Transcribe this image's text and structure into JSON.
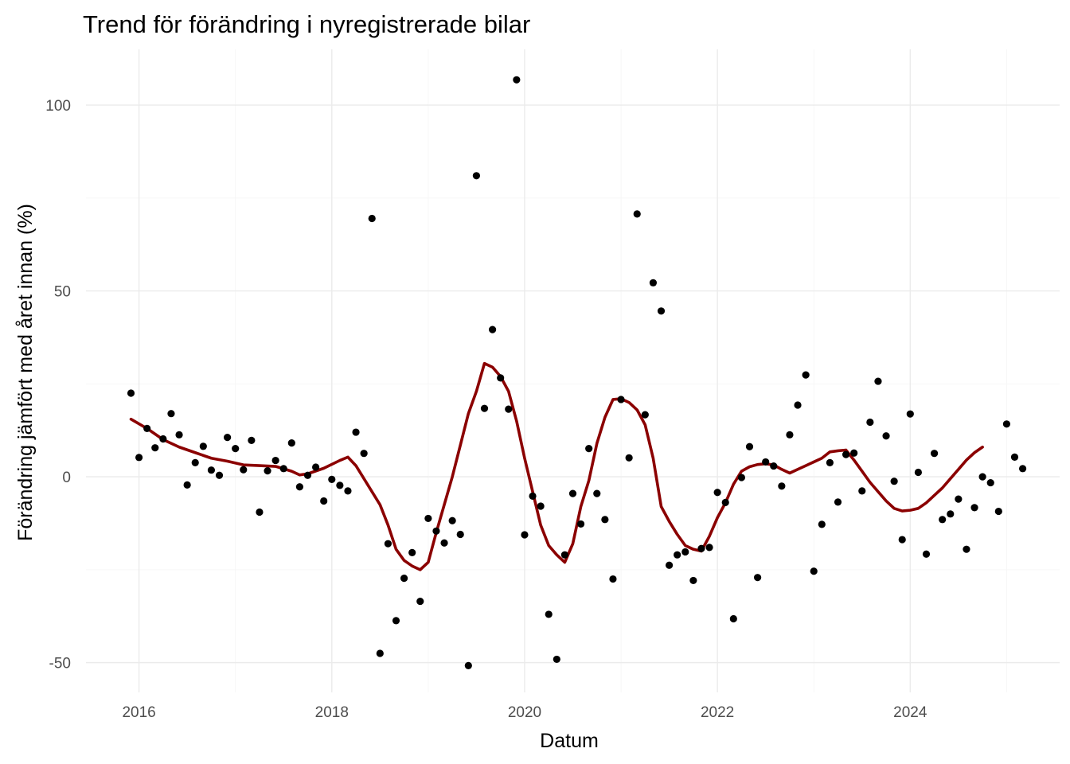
{
  "chart_data": {
    "type": "scatter",
    "title": "Trend för förändring i nyregistrerade bilar",
    "xlabel": "Datum",
    "ylabel": "Förändring jämfört med året innan (%)",
    "x_ticks": [
      "2016",
      "2018",
      "2020",
      "2022",
      "2024"
    ],
    "y_ticks": [
      "-50",
      "0",
      "50",
      "100"
    ],
    "xlim": [
      2015.45,
      2025.55
    ],
    "ylim": [
      -58,
      115
    ],
    "grid": true,
    "colors": {
      "points": "#000000",
      "trend": "#8b0000",
      "grid": "#ebebeb"
    },
    "series": [
      {
        "type": "scatter",
        "points": [
          [
            "2015-12",
            22.5
          ],
          [
            "2016-01",
            5.2
          ],
          [
            "2016-02",
            13.0
          ],
          [
            "2016-03",
            7.8
          ],
          [
            "2016-04",
            10.2
          ],
          [
            "2016-05",
            17.0
          ],
          [
            "2016-06",
            11.3
          ],
          [
            "2016-07",
            -2.2
          ],
          [
            "2016-08",
            3.8
          ],
          [
            "2016-09",
            8.2
          ],
          [
            "2016-10",
            1.8
          ],
          [
            "2016-11",
            0.4
          ],
          [
            "2016-12",
            10.6
          ],
          [
            "2017-01",
            7.6
          ],
          [
            "2017-02",
            1.9
          ],
          [
            "2017-03",
            9.8
          ],
          [
            "2017-04",
            -9.5
          ],
          [
            "2017-05",
            1.6
          ],
          [
            "2017-06",
            4.4
          ],
          [
            "2017-07",
            2.2
          ],
          [
            "2017-08",
            9.1
          ],
          [
            "2017-09",
            -2.7
          ],
          [
            "2017-10",
            0.4
          ],
          [
            "2017-11",
            2.6
          ],
          [
            "2017-12",
            -6.5
          ],
          [
            "2018-01",
            -0.7
          ],
          [
            "2018-02",
            -2.3
          ],
          [
            "2018-03",
            -3.8
          ],
          [
            "2018-04",
            12.0
          ],
          [
            "2018-05",
            6.3
          ],
          [
            "2018-06",
            69.5
          ],
          [
            "2018-07",
            -47.5
          ],
          [
            "2018-08",
            -18.0
          ],
          [
            "2018-09",
            -38.7
          ],
          [
            "2018-10",
            -27.3
          ],
          [
            "2018-11",
            -20.4
          ],
          [
            "2018-12",
            -33.5
          ],
          [
            "2019-01",
            -11.2
          ],
          [
            "2019-02",
            -14.6
          ],
          [
            "2019-03",
            -17.8
          ],
          [
            "2019-04",
            -11.8
          ],
          [
            "2019-05",
            -15.5
          ],
          [
            "2019-06",
            -50.8
          ],
          [
            "2019-07",
            81.0
          ],
          [
            "2019-08",
            18.4
          ],
          [
            "2019-09",
            39.6
          ],
          [
            "2019-10",
            26.6
          ],
          [
            "2019-11",
            18.2
          ],
          [
            "2019-12",
            106.8
          ],
          [
            "2020-01",
            -15.6
          ],
          [
            "2020-02",
            -5.2
          ],
          [
            "2020-03",
            -7.9
          ],
          [
            "2020-04",
            -37.0
          ],
          [
            "2020-05",
            -49.1
          ],
          [
            "2020-06",
            -21.0
          ],
          [
            "2020-07",
            -4.5
          ],
          [
            "2020-08",
            -12.7
          ],
          [
            "2020-09",
            7.6
          ],
          [
            "2020-10",
            -4.5
          ],
          [
            "2020-11",
            -11.5
          ],
          [
            "2020-12",
            -27.5
          ],
          [
            "2021-01",
            20.8
          ],
          [
            "2021-02",
            5.1
          ],
          [
            "2021-03",
            70.7
          ],
          [
            "2021-04",
            16.7
          ],
          [
            "2021-05",
            52.2
          ],
          [
            "2021-06",
            44.6
          ],
          [
            "2021-07",
            -23.8
          ],
          [
            "2021-08",
            -21.0
          ],
          [
            "2021-09",
            -20.2
          ],
          [
            "2021-10",
            -27.9
          ],
          [
            "2021-11",
            -19.3
          ],
          [
            "2021-12",
            -19.0
          ],
          [
            "2022-01",
            -4.2
          ],
          [
            "2022-02",
            -6.9
          ],
          [
            "2022-03",
            -38.2
          ],
          [
            "2022-04",
            -0.2
          ],
          [
            "2022-05",
            8.1
          ],
          [
            "2022-06",
            -27.1
          ],
          [
            "2022-07",
            4.0
          ],
          [
            "2022-08",
            2.9
          ],
          [
            "2022-09",
            -2.5
          ],
          [
            "2022-10",
            11.3
          ],
          [
            "2022-11",
            19.3
          ],
          [
            "2022-12",
            27.4
          ],
          [
            "2023-01",
            -25.4
          ],
          [
            "2023-02",
            -12.8
          ],
          [
            "2023-03",
            3.8
          ],
          [
            "2023-04",
            -6.8
          ],
          [
            "2023-05",
            6.0
          ],
          [
            "2023-06",
            6.4
          ],
          [
            "2023-07",
            -3.8
          ],
          [
            "2023-08",
            14.7
          ],
          [
            "2023-09",
            25.7
          ],
          [
            "2023-10",
            11.0
          ],
          [
            "2023-11",
            -1.2
          ],
          [
            "2023-12",
            -16.9
          ],
          [
            "2024-01",
            16.9
          ],
          [
            "2024-02",
            1.2
          ],
          [
            "2024-03",
            -20.8
          ],
          [
            "2024-04",
            6.3
          ],
          [
            "2024-05",
            -11.5
          ],
          [
            "2024-06",
            -10.0
          ],
          [
            "2024-07",
            -6.0
          ],
          [
            "2024-08",
            -19.5
          ],
          [
            "2024-09",
            -8.3
          ],
          [
            "2024-10",
            0.0
          ],
          [
            "2024-11",
            -1.6
          ],
          [
            "2024-12",
            -9.3
          ],
          [
            "2025-01",
            14.2
          ],
          [
            "2025-02",
            5.3
          ],
          [
            "2025-03",
            2.2
          ]
        ]
      },
      {
        "type": "line",
        "points": [
          [
            "2015-12",
            15.5
          ],
          [
            "2016-02",
            13.0
          ],
          [
            "2016-04",
            10.0
          ],
          [
            "2016-06",
            8.0
          ],
          [
            "2016-08",
            6.5
          ],
          [
            "2016-10",
            5.0
          ],
          [
            "2016-12",
            4.2
          ],
          [
            "2017-02",
            3.2
          ],
          [
            "2017-04",
            3.0
          ],
          [
            "2017-06",
            2.8
          ],
          [
            "2017-08",
            1.5
          ],
          [
            "2017-09",
            0.5
          ],
          [
            "2017-10",
            0.8
          ],
          [
            "2017-12",
            2.3
          ],
          [
            "2018-02",
            4.4
          ],
          [
            "2018-03",
            5.3
          ],
          [
            "2018-04",
            3.0
          ],
          [
            "2018-06",
            -4.0
          ],
          [
            "2018-07",
            -7.5
          ],
          [
            "2018-08",
            -13.0
          ],
          [
            "2018-09",
            -19.5
          ],
          [
            "2018-10",
            -22.5
          ],
          [
            "2018-11",
            -24.0
          ],
          [
            "2018-12",
            -25.0
          ],
          [
            "2019-01",
            -23.0
          ],
          [
            "2019-02",
            -15.0
          ],
          [
            "2019-04",
            0.0
          ],
          [
            "2019-05",
            8.5
          ],
          [
            "2019-06",
            17.0
          ],
          [
            "2019-07",
            23.0
          ],
          [
            "2019-08",
            30.5
          ],
          [
            "2019-09",
            29.5
          ],
          [
            "2019-10",
            27.0
          ],
          [
            "2019-11",
            23.0
          ],
          [
            "2019-12",
            15.0
          ],
          [
            "2020-01",
            5.0
          ],
          [
            "2020-02",
            -4.0
          ],
          [
            "2020-03",
            -13.0
          ],
          [
            "2020-04",
            -18.5
          ],
          [
            "2020-05",
            -21.0
          ],
          [
            "2020-06",
            -23.0
          ],
          [
            "2020-07",
            -18.0
          ],
          [
            "2020-08",
            -8.0
          ],
          [
            "2020-09",
            -1.0
          ],
          [
            "2020-10",
            9.0
          ],
          [
            "2020-11",
            16.0
          ],
          [
            "2020-12",
            20.8
          ],
          [
            "2021-01",
            21.0
          ],
          [
            "2021-02",
            20.0
          ],
          [
            "2021-03",
            18.0
          ],
          [
            "2021-04",
            14.0
          ],
          [
            "2021-05",
            5.0
          ],
          [
            "2021-06",
            -8.0
          ],
          [
            "2021-07",
            -12.0
          ],
          [
            "2021-08",
            -15.5
          ],
          [
            "2021-09",
            -18.5
          ],
          [
            "2021-10",
            -19.5
          ],
          [
            "2021-11",
            -20.0
          ],
          [
            "2021-12",
            -16.0
          ],
          [
            "2022-01",
            -11.0
          ],
          [
            "2022-02",
            -7.0
          ],
          [
            "2022-03",
            -2.0
          ],
          [
            "2022-04",
            1.5
          ],
          [
            "2022-05",
            2.7
          ],
          [
            "2022-06",
            3.3
          ],
          [
            "2022-07",
            3.5
          ],
          [
            "2022-08",
            3.2
          ],
          [
            "2022-09",
            2.0
          ],
          [
            "2022-10",
            1.0
          ],
          [
            "2022-11",
            2.0
          ],
          [
            "2022-12",
            3.0
          ],
          [
            "2023-01",
            4.0
          ],
          [
            "2023-02",
            5.0
          ],
          [
            "2023-03",
            6.7
          ],
          [
            "2023-04",
            7.0
          ],
          [
            "2023-05",
            7.2
          ],
          [
            "2023-06",
            4.5
          ],
          [
            "2023-07",
            1.5
          ],
          [
            "2023-08",
            -1.5
          ],
          [
            "2023-09",
            -4.0
          ],
          [
            "2023-10",
            -6.5
          ],
          [
            "2023-11",
            -8.5
          ],
          [
            "2023-12",
            -9.2
          ],
          [
            "2024-01",
            -9.0
          ],
          [
            "2024-02",
            -8.5
          ],
          [
            "2024-03",
            -7.0
          ],
          [
            "2024-04",
            -5.0
          ],
          [
            "2024-05",
            -3.0
          ],
          [
            "2024-06",
            -0.5
          ],
          [
            "2024-07",
            2.0
          ],
          [
            "2024-08",
            4.5
          ],
          [
            "2024-09",
            6.5
          ],
          [
            "2024-10",
            8.0
          ]
        ]
      }
    ]
  }
}
